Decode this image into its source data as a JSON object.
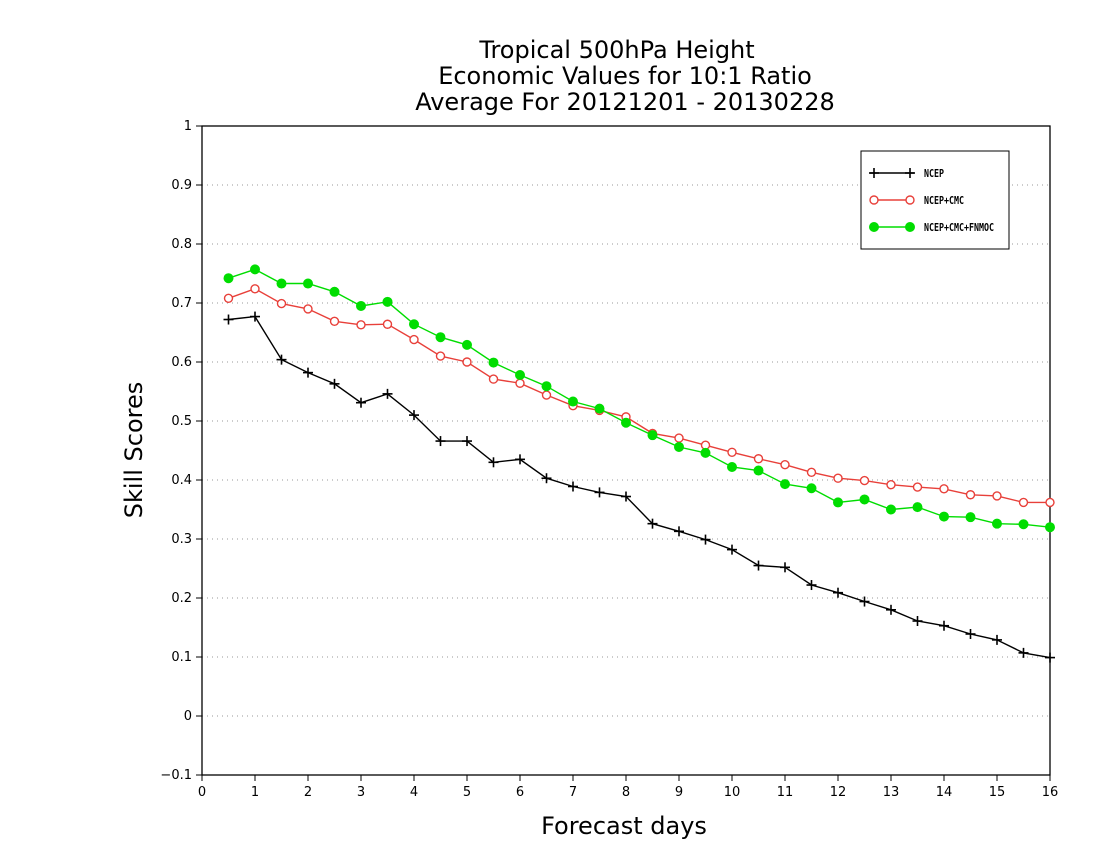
{
  "chart_data": {
    "type": "line",
    "title": [
      "Tropical 500hPa Height",
      "Economic Values for 10:1 Ratio",
      "Average For 20121201 - 20130228"
    ],
    "xlabel": "Forecast days",
    "ylabel": "Skill Scores",
    "xlim": [
      0,
      16
    ],
    "ylim": [
      -0.1,
      1
    ],
    "xticks": [
      0,
      1,
      2,
      3,
      4,
      5,
      6,
      7,
      8,
      9,
      10,
      11,
      12,
      13,
      14,
      15,
      16
    ],
    "yticks": [
      -0.1,
      0,
      0.1,
      0.2,
      0.3,
      0.4,
      0.5,
      0.6,
      0.7,
      0.8,
      0.9,
      1
    ],
    "ytick_labels": [
      "−0.1",
      "0",
      "0.1",
      "0.2",
      "0.3",
      "0.4",
      "0.5",
      "0.6",
      "0.7",
      "0.8",
      "0.9",
      "1"
    ],
    "grid": "horizontal dotted",
    "legend_position": "top-right",
    "x": [
      0.5,
      1,
      1.5,
      2,
      2.5,
      3,
      3.5,
      4,
      4.5,
      5,
      5.5,
      6,
      6.5,
      7,
      7.5,
      8,
      8.5,
      9,
      9.5,
      10,
      10.5,
      11,
      11.5,
      12,
      12.5,
      13,
      13.5,
      14,
      14.5,
      15,
      15.5,
      16
    ],
    "series": [
      {
        "name": "NCEP",
        "color": "#000000",
        "marker": "plus",
        "values": [
          0.672,
          0.677,
          0.604,
          0.582,
          0.563,
          0.531,
          0.546,
          0.51,
          0.466,
          0.466,
          0.43,
          0.435,
          0.403,
          0.389,
          0.379,
          0.372,
          0.326,
          0.313,
          0.299,
          0.282,
          0.255,
          0.252,
          0.222,
          0.209,
          0.194,
          0.18,
          0.161,
          0.153,
          0.139,
          0.129,
          0.107,
          0.099
        ]
      },
      {
        "name": "NCEP+CMC",
        "color": "#e8403a",
        "marker": "open-circle",
        "values": [
          0.708,
          0.724,
          0.699,
          0.69,
          0.669,
          0.663,
          0.664,
          0.638,
          0.61,
          0.6,
          0.571,
          0.564,
          0.544,
          0.526,
          0.518,
          0.507,
          0.479,
          0.471,
          0.459,
          0.447,
          0.436,
          0.426,
          0.413,
          0.403,
          0.399,
          0.392,
          0.388,
          0.385,
          0.375,
          0.373,
          0.362,
          0.362
        ]
      },
      {
        "name": "NCEP+CMC+FNMOC",
        "color": "#00dd00",
        "marker": "filled-circle",
        "values": [
          0.742,
          0.757,
          0.733,
          0.733,
          0.719,
          0.695,
          0.702,
          0.664,
          0.642,
          0.629,
          0.599,
          0.578,
          0.559,
          0.533,
          0.521,
          0.497,
          0.476,
          0.456,
          0.446,
          0.422,
          0.416,
          0.393,
          0.386,
          0.362,
          0.367,
          0.35,
          0.354,
          0.338,
          0.337,
          0.326,
          0.325,
          0.32
        ]
      }
    ]
  }
}
